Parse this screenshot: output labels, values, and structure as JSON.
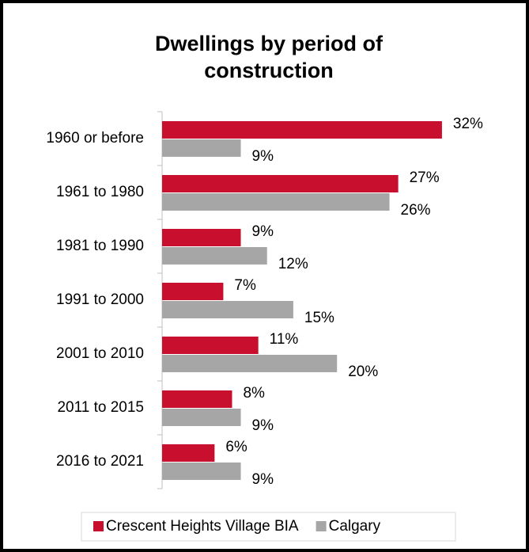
{
  "chart_data": {
    "type": "bar",
    "orientation": "horizontal",
    "title": "Dwellings by period of construction",
    "categories": [
      "1960 or before",
      "1961 to 1980",
      "1981 to 1990",
      "1991 to 2000",
      "2001 to 2010",
      "2011 to 2015",
      "2016 to 2021"
    ],
    "series": [
      {
        "name": "Crescent Heights Village BIA",
        "color": "#c8102e",
        "values": [
          32,
          27,
          9,
          7,
          11,
          8,
          6
        ],
        "value_labels": [
          "32%",
          "27%",
          "9%",
          "7%",
          "11%",
          "8%",
          "6%"
        ]
      },
      {
        "name": "Calgary",
        "color": "#a6a6a6",
        "values": [
          9,
          26,
          12,
          15,
          20,
          9,
          9
        ],
        "value_labels": [
          "9%",
          "26%",
          "12%",
          "15%",
          "20%",
          "9%",
          "9%"
        ]
      }
    ],
    "legend": "bottom"
  }
}
